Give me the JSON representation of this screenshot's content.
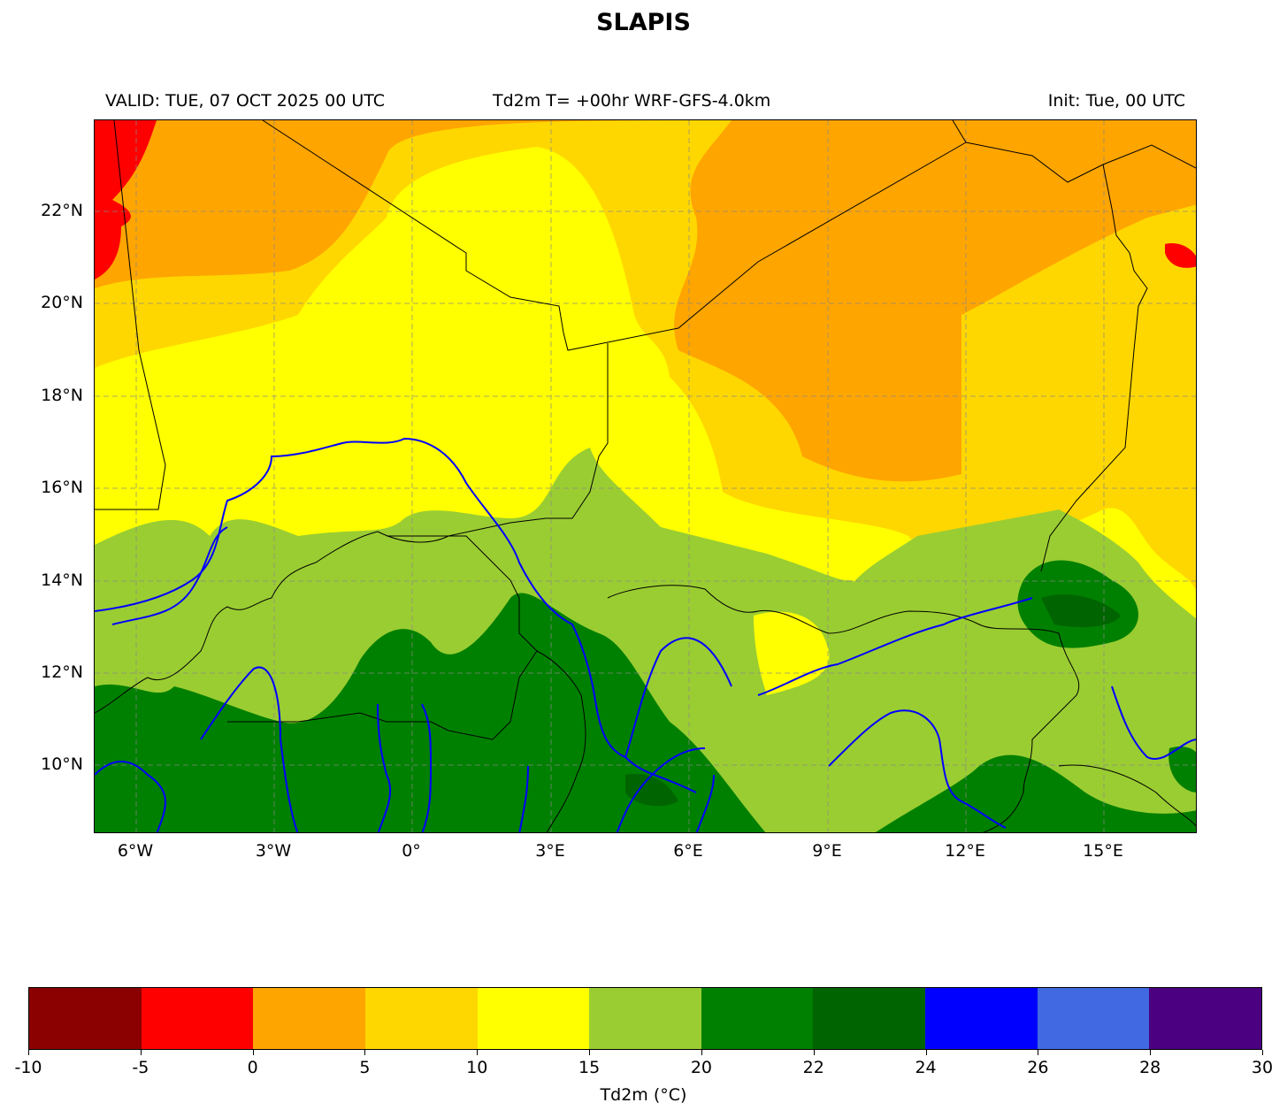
{
  "title": "SLAPIS",
  "subtitle_left": "VALID: TUE, 07 OCT 2025 00 UTC",
  "subtitle_center": "Td2m T= +00hr WRF-GFS-4.0km",
  "subtitle_right": "Init: Tue, 00 UTC",
  "map": {
    "extent": {
      "lon": [
        -6.9,
        17.0
      ],
      "lat": [
        8.5,
        24.0
      ]
    },
    "x_ticks": [
      "6°W",
      "3°W",
      "0°",
      "3°E",
      "6°E",
      "9°E",
      "12°E",
      "15°E"
    ],
    "y_ticks": [
      "22°N",
      "20°N",
      "18°N",
      "16°N",
      "14°N",
      "12°N",
      "10°N"
    ],
    "gridlines": true,
    "features": [
      "coastlines-borders",
      "rivers"
    ]
  },
  "colorbar": {
    "label": "Td2m (°C)",
    "tick_labels": [
      "-10",
      "-5",
      "0",
      "5",
      "10",
      "15",
      "20",
      "22",
      "24",
      "26",
      "28",
      "30"
    ],
    "colors": [
      "#8b0000",
      "#ff0000",
      "#ffa500",
      "#ffd700",
      "#ffff00",
      "#9acd32",
      "#008000",
      "#006400",
      "#0000ff",
      "#4169e1",
      "#4b0082"
    ]
  }
}
